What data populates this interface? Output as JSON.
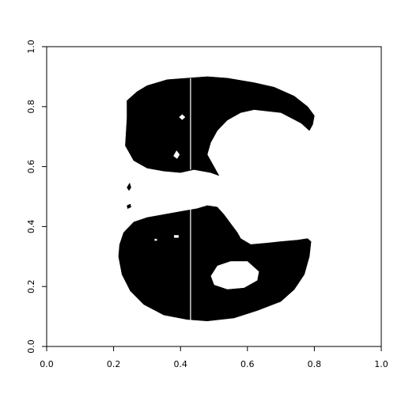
{
  "chart_data": {
    "type": "heatmap",
    "title": "",
    "xlabel": "",
    "ylabel": "",
    "xlim": [
      0,
      1
    ],
    "ylim": [
      0,
      1
    ],
    "x_ticks": [
      0.0,
      0.2,
      0.4,
      0.6,
      0.8,
      1.0
    ],
    "x_tick_labels": [
      "0.0",
      "0.2",
      "0.4",
      "0.6",
      "0.8",
      "1.0"
    ],
    "y_ticks": [
      0.0,
      0.2,
      0.4,
      0.6,
      0.8,
      1.0
    ],
    "y_tick_labels": [
      "0.0",
      "0.2",
      "0.4",
      "0.6",
      "0.8",
      "1.0"
    ],
    "grid": false,
    "colors": {
      "foreground": "#000000",
      "background": "#ffffff"
    },
    "regions": [
      {
        "name": "upper-lobe",
        "fill": "#000000",
        "outline": [
          [
            0.24,
            0.82
          ],
          [
            0.27,
            0.85
          ],
          [
            0.3,
            0.87
          ],
          [
            0.33,
            0.88
          ],
          [
            0.36,
            0.89
          ],
          [
            0.42,
            0.895
          ],
          [
            0.48,
            0.9
          ],
          [
            0.54,
            0.895
          ],
          [
            0.62,
            0.88
          ],
          [
            0.68,
            0.865
          ],
          [
            0.74,
            0.835
          ],
          [
            0.78,
            0.8
          ],
          [
            0.8,
            0.77
          ],
          [
            0.795,
            0.74
          ],
          [
            0.785,
            0.72
          ],
          [
            0.76,
            0.745
          ],
          [
            0.7,
            0.78
          ],
          [
            0.62,
            0.79
          ],
          [
            0.58,
            0.78
          ],
          [
            0.54,
            0.755
          ],
          [
            0.51,
            0.72
          ],
          [
            0.49,
            0.68
          ],
          [
            0.48,
            0.64
          ],
          [
            0.5,
            0.6
          ],
          [
            0.515,
            0.57
          ],
          [
            0.49,
            0.58
          ],
          [
            0.44,
            0.59
          ],
          [
            0.4,
            0.58
          ],
          [
            0.35,
            0.585
          ],
          [
            0.3,
            0.595
          ],
          [
            0.26,
            0.62
          ],
          [
            0.235,
            0.67
          ],
          [
            0.24,
            0.76
          ]
        ],
        "holes": [
          [
            [
              0.395,
              0.765
            ],
            [
              0.405,
              0.775
            ],
            [
              0.415,
              0.765
            ],
            [
              0.405,
              0.755
            ]
          ],
          [
            [
              0.378,
              0.635
            ],
            [
              0.388,
              0.655
            ],
            [
              0.398,
              0.64
            ],
            [
              0.39,
              0.625
            ]
          ]
        ]
      },
      {
        "name": "lower-lobe",
        "fill": "#000000",
        "outline": [
          [
            0.23,
            0.38
          ],
          [
            0.26,
            0.415
          ],
          [
            0.3,
            0.43
          ],
          [
            0.35,
            0.44
          ],
          [
            0.4,
            0.45
          ],
          [
            0.45,
            0.46
          ],
          [
            0.48,
            0.47
          ],
          [
            0.51,
            0.465
          ],
          [
            0.53,
            0.44
          ],
          [
            0.55,
            0.41
          ],
          [
            0.57,
            0.38
          ],
          [
            0.58,
            0.36
          ],
          [
            0.61,
            0.34
          ],
          [
            0.66,
            0.345
          ],
          [
            0.7,
            0.35
          ],
          [
            0.75,
            0.355
          ],
          [
            0.78,
            0.36
          ],
          [
            0.79,
            0.35
          ],
          [
            0.785,
            0.3
          ],
          [
            0.77,
            0.24
          ],
          [
            0.74,
            0.19
          ],
          [
            0.7,
            0.15
          ],
          [
            0.63,
            0.12
          ],
          [
            0.56,
            0.095
          ],
          [
            0.48,
            0.085
          ],
          [
            0.42,
            0.09
          ],
          [
            0.35,
            0.105
          ],
          [
            0.29,
            0.14
          ],
          [
            0.25,
            0.185
          ],
          [
            0.225,
            0.24
          ],
          [
            0.215,
            0.3
          ],
          [
            0.218,
            0.34
          ]
        ],
        "holes": [
          [
            [
              0.49,
              0.235
            ],
            [
              0.51,
              0.27
            ],
            [
              0.55,
              0.285
            ],
            [
              0.6,
              0.285
            ],
            [
              0.635,
              0.25
            ],
            [
              0.63,
              0.22
            ],
            [
              0.59,
              0.195
            ],
            [
              0.54,
              0.19
            ],
            [
              0.5,
              0.205
            ]
          ],
          [
            [
              0.322,
              0.352
            ],
            [
              0.33,
              0.352
            ],
            [
              0.33,
              0.36
            ],
            [
              0.322,
              0.36
            ]
          ],
          [
            [
              0.38,
              0.362
            ],
            [
              0.395,
              0.362
            ],
            [
              0.395,
              0.372
            ],
            [
              0.38,
              0.372
            ]
          ]
        ]
      },
      {
        "name": "speckle",
        "fill": "#000000",
        "outline": [
          [
            0.24,
            0.47
          ],
          [
            0.25,
            0.475
          ],
          [
            0.252,
            0.465
          ],
          [
            0.242,
            0.46
          ]
        ]
      },
      {
        "name": "speckle",
        "fill": "#000000",
        "outline": [
          [
            0.24,
            0.53
          ],
          [
            0.248,
            0.545
          ],
          [
            0.252,
            0.53
          ],
          [
            0.246,
            0.52
          ]
        ]
      }
    ],
    "vertical_lines": [
      {
        "x": 0.43,
        "y_range": [
          0.59,
          0.895
        ],
        "color": "#ffffff"
      },
      {
        "x": 0.43,
        "y_range": [
          0.085,
          0.46
        ],
        "color": "#ffffff"
      }
    ]
  }
}
